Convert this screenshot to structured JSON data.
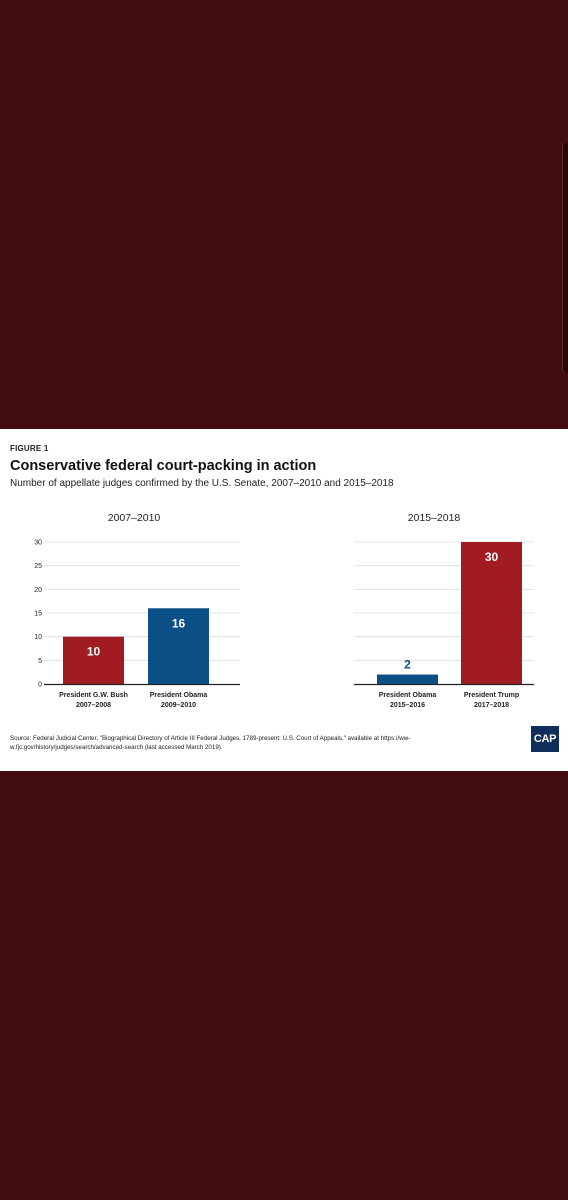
{
  "figure": {
    "label": "FIGURE 1",
    "title": "Conservative federal court-packing in action",
    "subtitle": "Number of appellate judges confirmed by the U.S. Senate, 2007–2010 and 2015–2018",
    "source": "Source: Federal Judicial Center, \"Biographical Directory of Article III Federal Judges, 1789-present: U.S. Court of Appeals,\" available at https://ww-w.fjc.gov/history/judges/search/advanced-search (last accessed March 2019).",
    "logo_text": "CAP"
  },
  "colors": {
    "red": "#a01c22",
    "blue": "#0b4f86",
    "background": "#420c10"
  },
  "chart_data": [
    {
      "type": "bar",
      "title": "2007–2010",
      "ylim": [
        0,
        30
      ],
      "yticks": [
        0,
        5,
        10,
        15,
        20,
        25,
        30
      ],
      "grid": true,
      "bars": [
        {
          "name": "President G.W. Bush",
          "period": "2007–2008",
          "value": 10,
          "color": "#a01c22"
        },
        {
          "name": "President Obama",
          "period": "2009–2010",
          "value": 16,
          "color": "#0b4f86"
        }
      ]
    },
    {
      "type": "bar",
      "title": "2015–2018",
      "ylim": [
        0,
        30
      ],
      "grid": true,
      "bars": [
        {
          "name": "President Obama",
          "period": "2015–2016",
          "value": 2,
          "color": "#0b4f86"
        },
        {
          "name": "President Trump",
          "period": "2017–2018",
          "value": 30,
          "color": "#a01c22"
        }
      ]
    }
  ]
}
